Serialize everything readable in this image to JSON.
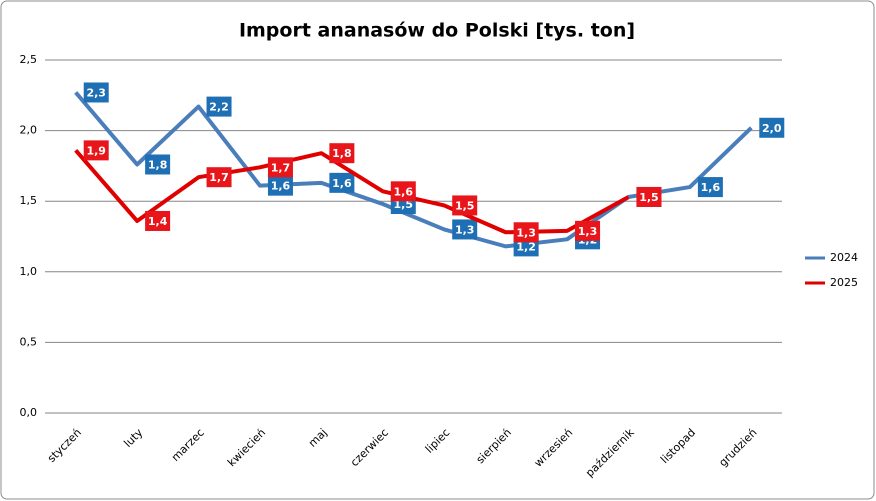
{
  "chart_data": {
    "type": "line",
    "title": "Import ananasów do Polski [tys. ton]",
    "categories": [
      "styczeń",
      "luty",
      "marzec",
      "kwiecień",
      "maj",
      "czerwiec",
      "lipiec",
      "sierpień",
      "wrzesień",
      "październik",
      "listopad",
      "grudzień"
    ],
    "series": [
      {
        "name": "2024",
        "color": "#4a7ebb",
        "label_color": "#1f6fb5",
        "values": [
          2.27,
          1.76,
          2.17,
          1.61,
          1.63,
          1.48,
          1.3,
          1.18,
          1.23,
          1.53,
          1.6,
          2.02
        ],
        "value_labels": [
          "2,3",
          "1,8",
          "2,2",
          "1,6",
          "1,6",
          "1,5",
          "1,3",
          "1,2",
          "1,2",
          "1,5",
          "1,6",
          "2,0"
        ]
      },
      {
        "name": "2025",
        "color": "#e00000",
        "label_color": "#e8161a",
        "values": [
          1.86,
          1.36,
          1.67,
          1.74,
          1.84,
          1.57,
          1.47,
          1.28,
          1.29,
          1.53,
          null,
          null
        ],
        "value_labels": [
          "1,9",
          "1,4",
          "1,7",
          "1,7",
          "1,8",
          "1,6",
          "1,5",
          "1,3",
          "1,3",
          "1,5",
          null,
          null
        ]
      }
    ],
    "ylim": [
      0,
      2.5
    ],
    "yticks": [
      {
        "value": 0,
        "label": "0,0"
      },
      {
        "value": 0.5,
        "label": "0,5"
      },
      {
        "value": 1,
        "label": "1,0"
      },
      {
        "value": 1.5,
        "label": "1,5"
      },
      {
        "value": 2,
        "label": "2,0"
      },
      {
        "value": 2.5,
        "label": "2,5"
      }
    ],
    "grid": true,
    "legend": "right"
  }
}
